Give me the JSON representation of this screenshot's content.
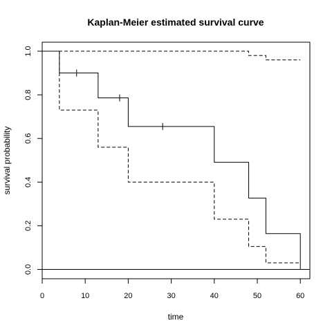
{
  "chart_data": {
    "type": "line",
    "title": "Kaplan-Meier estimated survival curve",
    "xlabel": "time",
    "ylabel": "survival probability",
    "xlim": [
      0,
      62
    ],
    "ylim": [
      0.0,
      1.0
    ],
    "x_ticks": [
      "0",
      "10",
      "20",
      "30",
      "40",
      "50",
      "60"
    ],
    "y_ticks": [
      "0.0",
      "0.2",
      "0.4",
      "0.6",
      "0.8",
      "1.0"
    ],
    "grid": false,
    "legend": "none",
    "series": [
      {
        "role": "estimate",
        "line_style": "solid",
        "x": [
          0,
          4,
          13,
          20,
          40,
          48,
          52,
          60
        ],
        "y": [
          1.0,
          0.9,
          0.786,
          0.655,
          0.491,
          0.327,
          0.164,
          0.0
        ],
        "censored": [
          {
            "x": 8,
            "y": 0.9
          },
          {
            "x": 18,
            "y": 0.786
          },
          {
            "x": 28,
            "y": 0.655
          }
        ]
      },
      {
        "role": "upper confidence limit",
        "line_style": "dashed",
        "x": [
          0,
          48,
          52,
          60
        ],
        "y": [
          1.0,
          0.98,
          0.96,
          0.96
        ]
      },
      {
        "role": "lower confidence limit",
        "line_style": "dashed",
        "x": [
          0,
          4,
          13,
          20,
          40,
          48,
          52,
          60
        ],
        "y": [
          1.0,
          0.73,
          0.56,
          0.4,
          0.23,
          0.105,
          0.03,
          0.03
        ]
      }
    ],
    "reference_lines": [
      {
        "axis": "y",
        "value": 0.0,
        "line_style": "solid"
      }
    ]
  }
}
